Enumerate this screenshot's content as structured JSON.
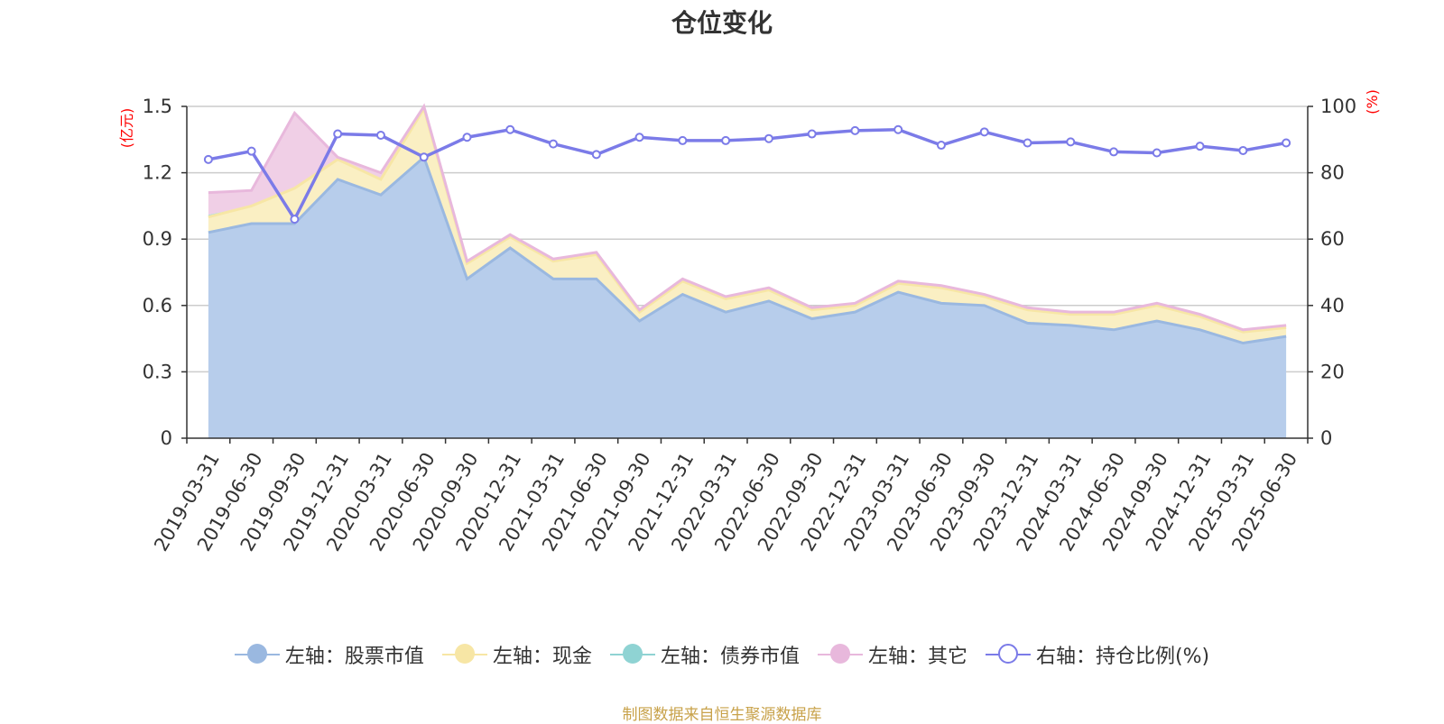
{
  "chart_data": {
    "type": "area",
    "title": "仓位变化",
    "left_unit": "(亿元)",
    "right_unit": "(%)",
    "categories": [
      "2019-03-31",
      "2019-06-30",
      "2019-09-30",
      "2019-12-31",
      "2020-03-31",
      "2020-06-30",
      "2020-09-30",
      "2020-12-31",
      "2021-03-31",
      "2021-06-30",
      "2021-09-30",
      "2021-12-31",
      "2022-03-31",
      "2022-06-30",
      "2022-09-30",
      "2022-12-31",
      "2023-03-31",
      "2023-06-30",
      "2023-09-30",
      "2023-12-31",
      "2024-03-31",
      "2024-06-30",
      "2024-09-30",
      "2024-12-31",
      "2025-03-31",
      "2025-06-30"
    ],
    "left_axis": {
      "ylim": [
        0,
        1.5
      ],
      "ticks": [
        "0",
        "0.3",
        "0.6",
        "0.9",
        "1.2",
        "1.5"
      ],
      "tick_values": [
        0,
        0.3,
        0.6,
        0.9,
        1.2,
        1.5
      ]
    },
    "right_axis": {
      "ylim": [
        0,
        100
      ],
      "ticks": [
        "0",
        "20",
        "40",
        "60",
        "80",
        "100"
      ],
      "tick_values": [
        0,
        20,
        40,
        60,
        80,
        100
      ]
    },
    "grid": true,
    "legend_position": "bottom-center",
    "series": [
      {
        "name": "左轴：股票市值",
        "axis": "left",
        "stack": "left",
        "color": "#9ab8e0",
        "fill": "#b7cdeb",
        "values": [
          0.93,
          0.97,
          0.97,
          1.17,
          1.1,
          1.27,
          0.72,
          0.86,
          0.72,
          0.72,
          0.53,
          0.65,
          0.57,
          0.62,
          0.54,
          0.57,
          0.66,
          0.61,
          0.6,
          0.52,
          0.51,
          0.49,
          0.53,
          0.49,
          0.43,
          0.46
        ]
      },
      {
        "name": "左轴：现金",
        "axis": "left",
        "stack": "left",
        "color": "#f7e6a5",
        "fill": "#faefc3",
        "values": [
          0.07,
          0.08,
          0.16,
          0.09,
          0.07,
          0.22,
          0.07,
          0.05,
          0.08,
          0.11,
          0.04,
          0.06,
          0.06,
          0.05,
          0.04,
          0.03,
          0.04,
          0.07,
          0.04,
          0.06,
          0.05,
          0.07,
          0.07,
          0.06,
          0.05,
          0.04
        ]
      },
      {
        "name": "左轴：债券市值",
        "axis": "left",
        "stack": "left",
        "color": "#8fd3d3",
        "fill": "#a9dede",
        "values": [
          0.01,
          0.0,
          0,
          0,
          0,
          0,
          0,
          0,
          0,
          0,
          0,
          0,
          0,
          0,
          0,
          0,
          0,
          0,
          0,
          0,
          0,
          0,
          0,
          0,
          0,
          0
        ]
      },
      {
        "name": "左轴：其它",
        "axis": "left",
        "stack": "left",
        "color": "#e8b8dc",
        "fill": "#f0cfe6",
        "values": [
          0.1,
          0.07,
          0.34,
          0.01,
          0.03,
          0.01,
          0.01,
          0.01,
          0.01,
          0.01,
          0.01,
          0.01,
          0.01,
          0.01,
          0.01,
          0.01,
          0.01,
          0.01,
          0.01,
          0.01,
          0.01,
          0.01,
          0.01,
          0.01,
          0.01,
          0.01
        ]
      },
      {
        "name": "右轴：持仓比例(%)",
        "axis": "right",
        "color": "#7b7be8",
        "values": [
          84,
          86.5,
          66,
          91.7,
          91.3,
          84.7,
          90.7,
          93,
          88.7,
          85.5,
          90.7,
          89.7,
          89.7,
          90.3,
          91.7,
          92.7,
          93,
          88.3,
          92.3,
          89,
          89.3,
          86.3,
          86,
          88,
          86.7,
          89
        ]
      }
    ]
  },
  "footer": {
    "source": "制图数据来自恒生聚源数据库"
  }
}
